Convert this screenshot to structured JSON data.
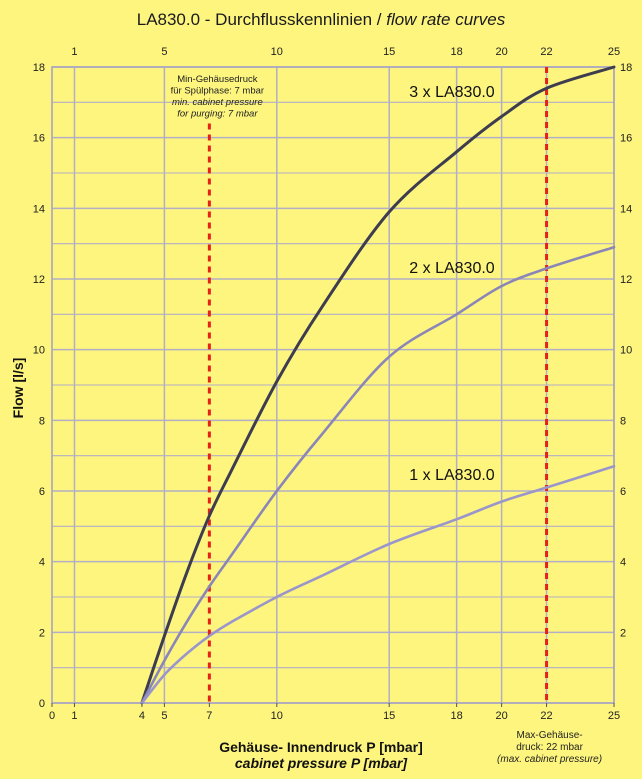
{
  "chart_data": {
    "type": "line",
    "title_normal": "LA830.0 - Durchflusskennlinien / ",
    "title_italic": "flow rate curves",
    "ylabel": "Flow [l/s]",
    "xlabel_de": "Gehäuse- Innendruck P [mbar]",
    "xlabel_en": "cabinet pressure P [mbar]",
    "xlim": [
      0,
      25
    ],
    "ylim": [
      0,
      18
    ],
    "bottom_ticks": [
      "0",
      "1",
      "4",
      "5",
      "7",
      "10",
      "15",
      "18",
      "20",
      "22",
      "25"
    ],
    "top_ticks": [
      "1",
      "5",
      "10",
      "15",
      "18",
      "20",
      "22",
      "25"
    ],
    "y_ticks": [
      "0",
      "2",
      "4",
      "6",
      "8",
      "10",
      "12",
      "14",
      "16",
      "18"
    ],
    "right_ticks": [
      "2",
      "4",
      "6",
      "8",
      "10",
      "12",
      "14",
      "16",
      "18"
    ],
    "grid": true,
    "series": [
      {
        "name": "3 x LA830.0",
        "color": "#3d3d4f",
        "x": [
          4,
          5,
          6,
          7,
          8,
          10,
          12,
          15,
          18,
          20,
          22,
          25
        ],
        "y": [
          0,
          1.9,
          3.7,
          5.3,
          6.6,
          9.1,
          11.2,
          13.9,
          15.6,
          16.6,
          17.4,
          18.0
        ]
      },
      {
        "name": "2 x LA830.0",
        "color": "#8a86b8",
        "x": [
          4,
          5,
          6,
          7,
          8,
          10,
          12,
          15,
          18,
          20,
          22,
          25
        ],
        "y": [
          0,
          1.2,
          2.3,
          3.3,
          4.2,
          6.0,
          7.6,
          9.8,
          11.0,
          11.8,
          12.3,
          12.9
        ]
      },
      {
        "name": "1 x LA830.0",
        "color": "#9a96cc",
        "x": [
          4,
          5,
          6,
          7,
          8,
          10,
          12,
          15,
          18,
          20,
          22,
          25
        ],
        "y": [
          0,
          0.8,
          1.4,
          1.9,
          2.3,
          3.0,
          3.6,
          4.5,
          5.2,
          5.7,
          6.1,
          6.7
        ]
      }
    ],
    "markers": [
      {
        "x": 7,
        "color": "#e8201a"
      },
      {
        "x": 22,
        "color": "#e8201a"
      }
    ],
    "annotations": {
      "min_label": [
        "Min-Gehäusedruck",
        "für Spülphase: 7 mbar",
        "min. cabinet pressure",
        "for purging: 7 mbar"
      ],
      "max_label": [
        "Max-Gehäuse-",
        "druck:  22 mbar",
        "(max. cabinet pressure)"
      ]
    }
  }
}
